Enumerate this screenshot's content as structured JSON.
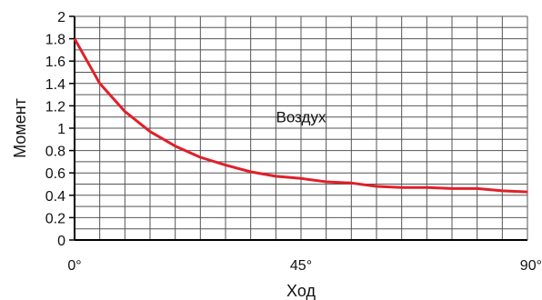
{
  "chart_data": {
    "type": "line",
    "title": "",
    "xlabel": "Ход",
    "ylabel": "Момент",
    "xlim": [
      0,
      90
    ],
    "ylim": [
      0,
      2
    ],
    "grid": true,
    "x_ticks": [
      0,
      45,
      90
    ],
    "x_tick_labels": [
      "0°",
      "45°",
      "90°"
    ],
    "y_ticks": [
      0,
      0.2,
      0.4,
      0.6,
      0.8,
      1,
      1.2,
      1.4,
      1.6,
      1.8,
      2
    ],
    "y_tick_labels": [
      "0",
      "0.2",
      "0.4",
      "0.6",
      "0.8",
      "1",
      "1.2",
      "1.4",
      "1.6",
      "1.8",
      "2"
    ],
    "annotations": [
      {
        "text": "Воздух",
        "x": 45,
        "y": 1.1
      }
    ],
    "series": [
      {
        "color": "#e0202a",
        "x": [
          0,
          5,
          10,
          15,
          20,
          25,
          30,
          35,
          40,
          45,
          50,
          55,
          60,
          65,
          70,
          75,
          80,
          85,
          90
        ],
        "y": [
          1.8,
          1.4,
          1.15,
          0.97,
          0.84,
          0.74,
          0.67,
          0.61,
          0.57,
          0.55,
          0.52,
          0.51,
          0.48,
          0.47,
          0.47,
          0.46,
          0.46,
          0.44,
          0.43
        ]
      }
    ]
  }
}
